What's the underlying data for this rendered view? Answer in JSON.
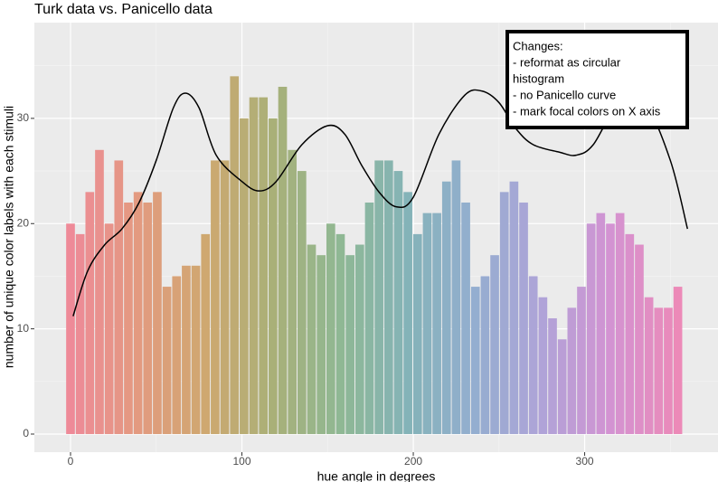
{
  "chart_data": {
    "type": "histogram",
    "title": "Turk data vs. Panicello data",
    "x_label": "hue angle in degrees",
    "y_label": "number of unique color labels with each stimuli",
    "bins": [
      -2.8125,
      2.8125,
      8.4375,
      14.0625,
      19.6875,
      25.3125,
      30.9375,
      36.5625,
      42.1875,
      47.8125,
      53.4375,
      59.0625,
      64.6875,
      70.3125,
      75.9375,
      81.5625,
      87.1875,
      92.8125,
      98.4375,
      104.0625,
      109.6875,
      115.3125,
      120.9375,
      126.5625,
      132.1875,
      137.8125,
      143.4375,
      149.0625,
      154.6875,
      160.3125,
      165.9375,
      171.5625,
      177.1875,
      182.8125,
      188.4375,
      194.0625,
      199.6875,
      205.3125,
      210.9375,
      216.5625,
      222.1875,
      227.8125,
      233.4375,
      239.0625,
      244.6875,
      250.3125,
      255.9375,
      261.5625,
      267.1875,
      272.8125,
      278.4375,
      284.0625,
      289.6875,
      295.3125,
      300.9375,
      306.5625,
      312.1875,
      317.8125,
      323.4375,
      329.0625,
      334.6875,
      340.3125,
      345.9375,
      351.5625,
      357.1875
    ],
    "counts": [
      20,
      19,
      23,
      27,
      20,
      26,
      22,
      23,
      22,
      23,
      14,
      15,
      16,
      16,
      19,
      26,
      26,
      34,
      30,
      32,
      32,
      30,
      33,
      27,
      25,
      18,
      17,
      20,
      19,
      17,
      18,
      22,
      26,
      26,
      25,
      23,
      19,
      21,
      21,
      24,
      26,
      22,
      14,
      15,
      17,
      23,
      24,
      22,
      15,
      13,
      11,
      9,
      12,
      14,
      20,
      21,
      20,
      21,
      19,
      18,
      13,
      12,
      12,
      14
    ],
    "color_scale": [
      "#ee8a98",
      "#e39a80",
      "#cfa870",
      "#a9b078",
      "#8fb894",
      "#84b3b8",
      "#94aed0",
      "#b0a3d8",
      "#d393d2",
      "#ec8ab8"
    ],
    "curve": {
      "color": "#000000",
      "x": [
        1.5,
        10,
        20,
        30,
        40,
        50,
        60,
        67,
        75,
        85,
        100,
        110,
        120,
        135,
        150,
        160,
        170,
        180,
        190,
        200,
        215,
        230,
        240,
        250,
        260,
        270,
        285,
        295,
        305,
        320,
        335,
        350,
        360
      ],
      "y": [
        11.2,
        15.5,
        18,
        19.5,
        22,
        26,
        31,
        32.4,
        31,
        26.5,
        24,
        23.1,
        24,
        27.5,
        29.3,
        28.5,
        25.5,
        23,
        21.6,
        22.5,
        28.5,
        32.2,
        32.6,
        31.5,
        29,
        27.5,
        26.8,
        26.5,
        27.5,
        31.5,
        31.5,
        26,
        19.5
      ]
    },
    "xlim": [
      -21.1,
      377.8
    ],
    "ylim": [
      -1.72,
      39.1
    ],
    "xticks": [
      0,
      100,
      200,
      300
    ],
    "yticks": [
      0,
      10,
      20,
      30
    ],
    "minor_xticks": [
      50,
      150,
      250,
      350
    ],
    "minor_yticks": [
      5,
      15,
      25,
      35
    ],
    "grid": true,
    "annotation": {
      "lines": [
        "Changes:",
        "- reformat as circular",
        "histogram",
        "- no Panicello curve",
        "- mark focal colors on X axis"
      ]
    }
  }
}
